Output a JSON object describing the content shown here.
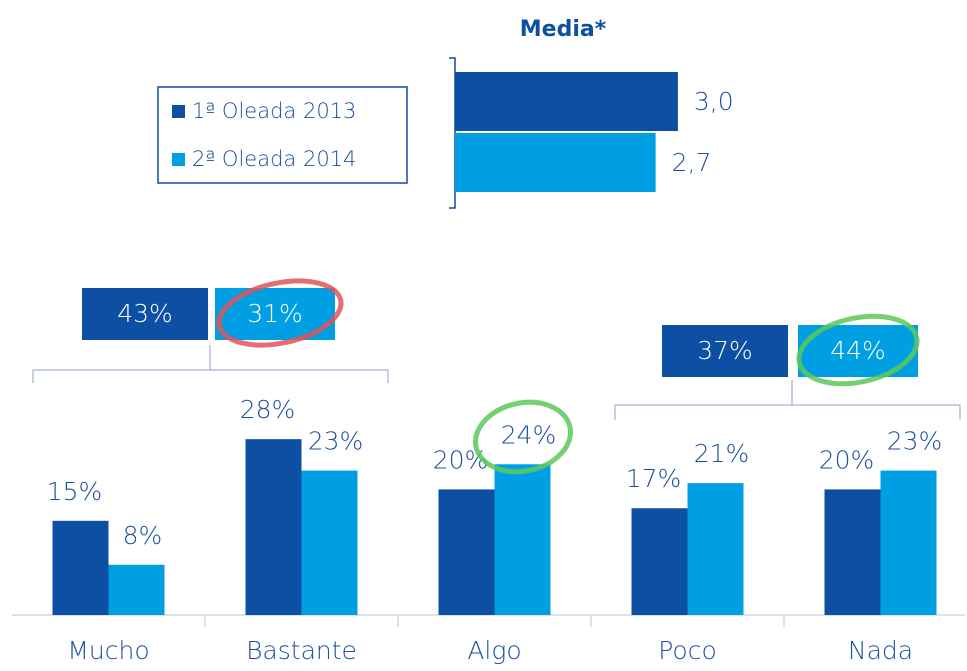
{
  "chart_data": [
    {
      "type": "hbar",
      "title": "Media*",
      "series": [
        {
          "name": "1ª Oleada 2013",
          "color": "#0c4fa3",
          "values": [
            3.0
          ],
          "value_labels": [
            "3,0"
          ]
        },
        {
          "name": "2ª Oleada 2014",
          "color": "#009fe3",
          "values": [
            2.7
          ],
          "value_labels": [
            "2,7"
          ]
        }
      ]
    },
    {
      "type": "bar",
      "categories": [
        "Mucho",
        "Bastante",
        "Algo",
        "Poco",
        "Nada"
      ],
      "series": [
        {
          "color": "#0c4fa3",
          "values": [
            15,
            28,
            20,
            17,
            20
          ],
          "value_labels": [
            "15%",
            "28%",
            "20%",
            "17%",
            "20%"
          ]
        },
        {
          "color": "#009fe3",
          "values": [
            8,
            23,
            24,
            21,
            23
          ],
          "value_labels": [
            "8%",
            "23%",
            "24%",
            "21%",
            "23%"
          ]
        }
      ],
      "groups": [
        {
          "values": [
            43,
            31
          ],
          "value_labels": [
            "43%",
            "31%"
          ]
        },
        {
          "values": [
            37,
            44
          ],
          "value_labels": [
            "37%",
            "44%"
          ]
        }
      ]
    }
  ]
}
